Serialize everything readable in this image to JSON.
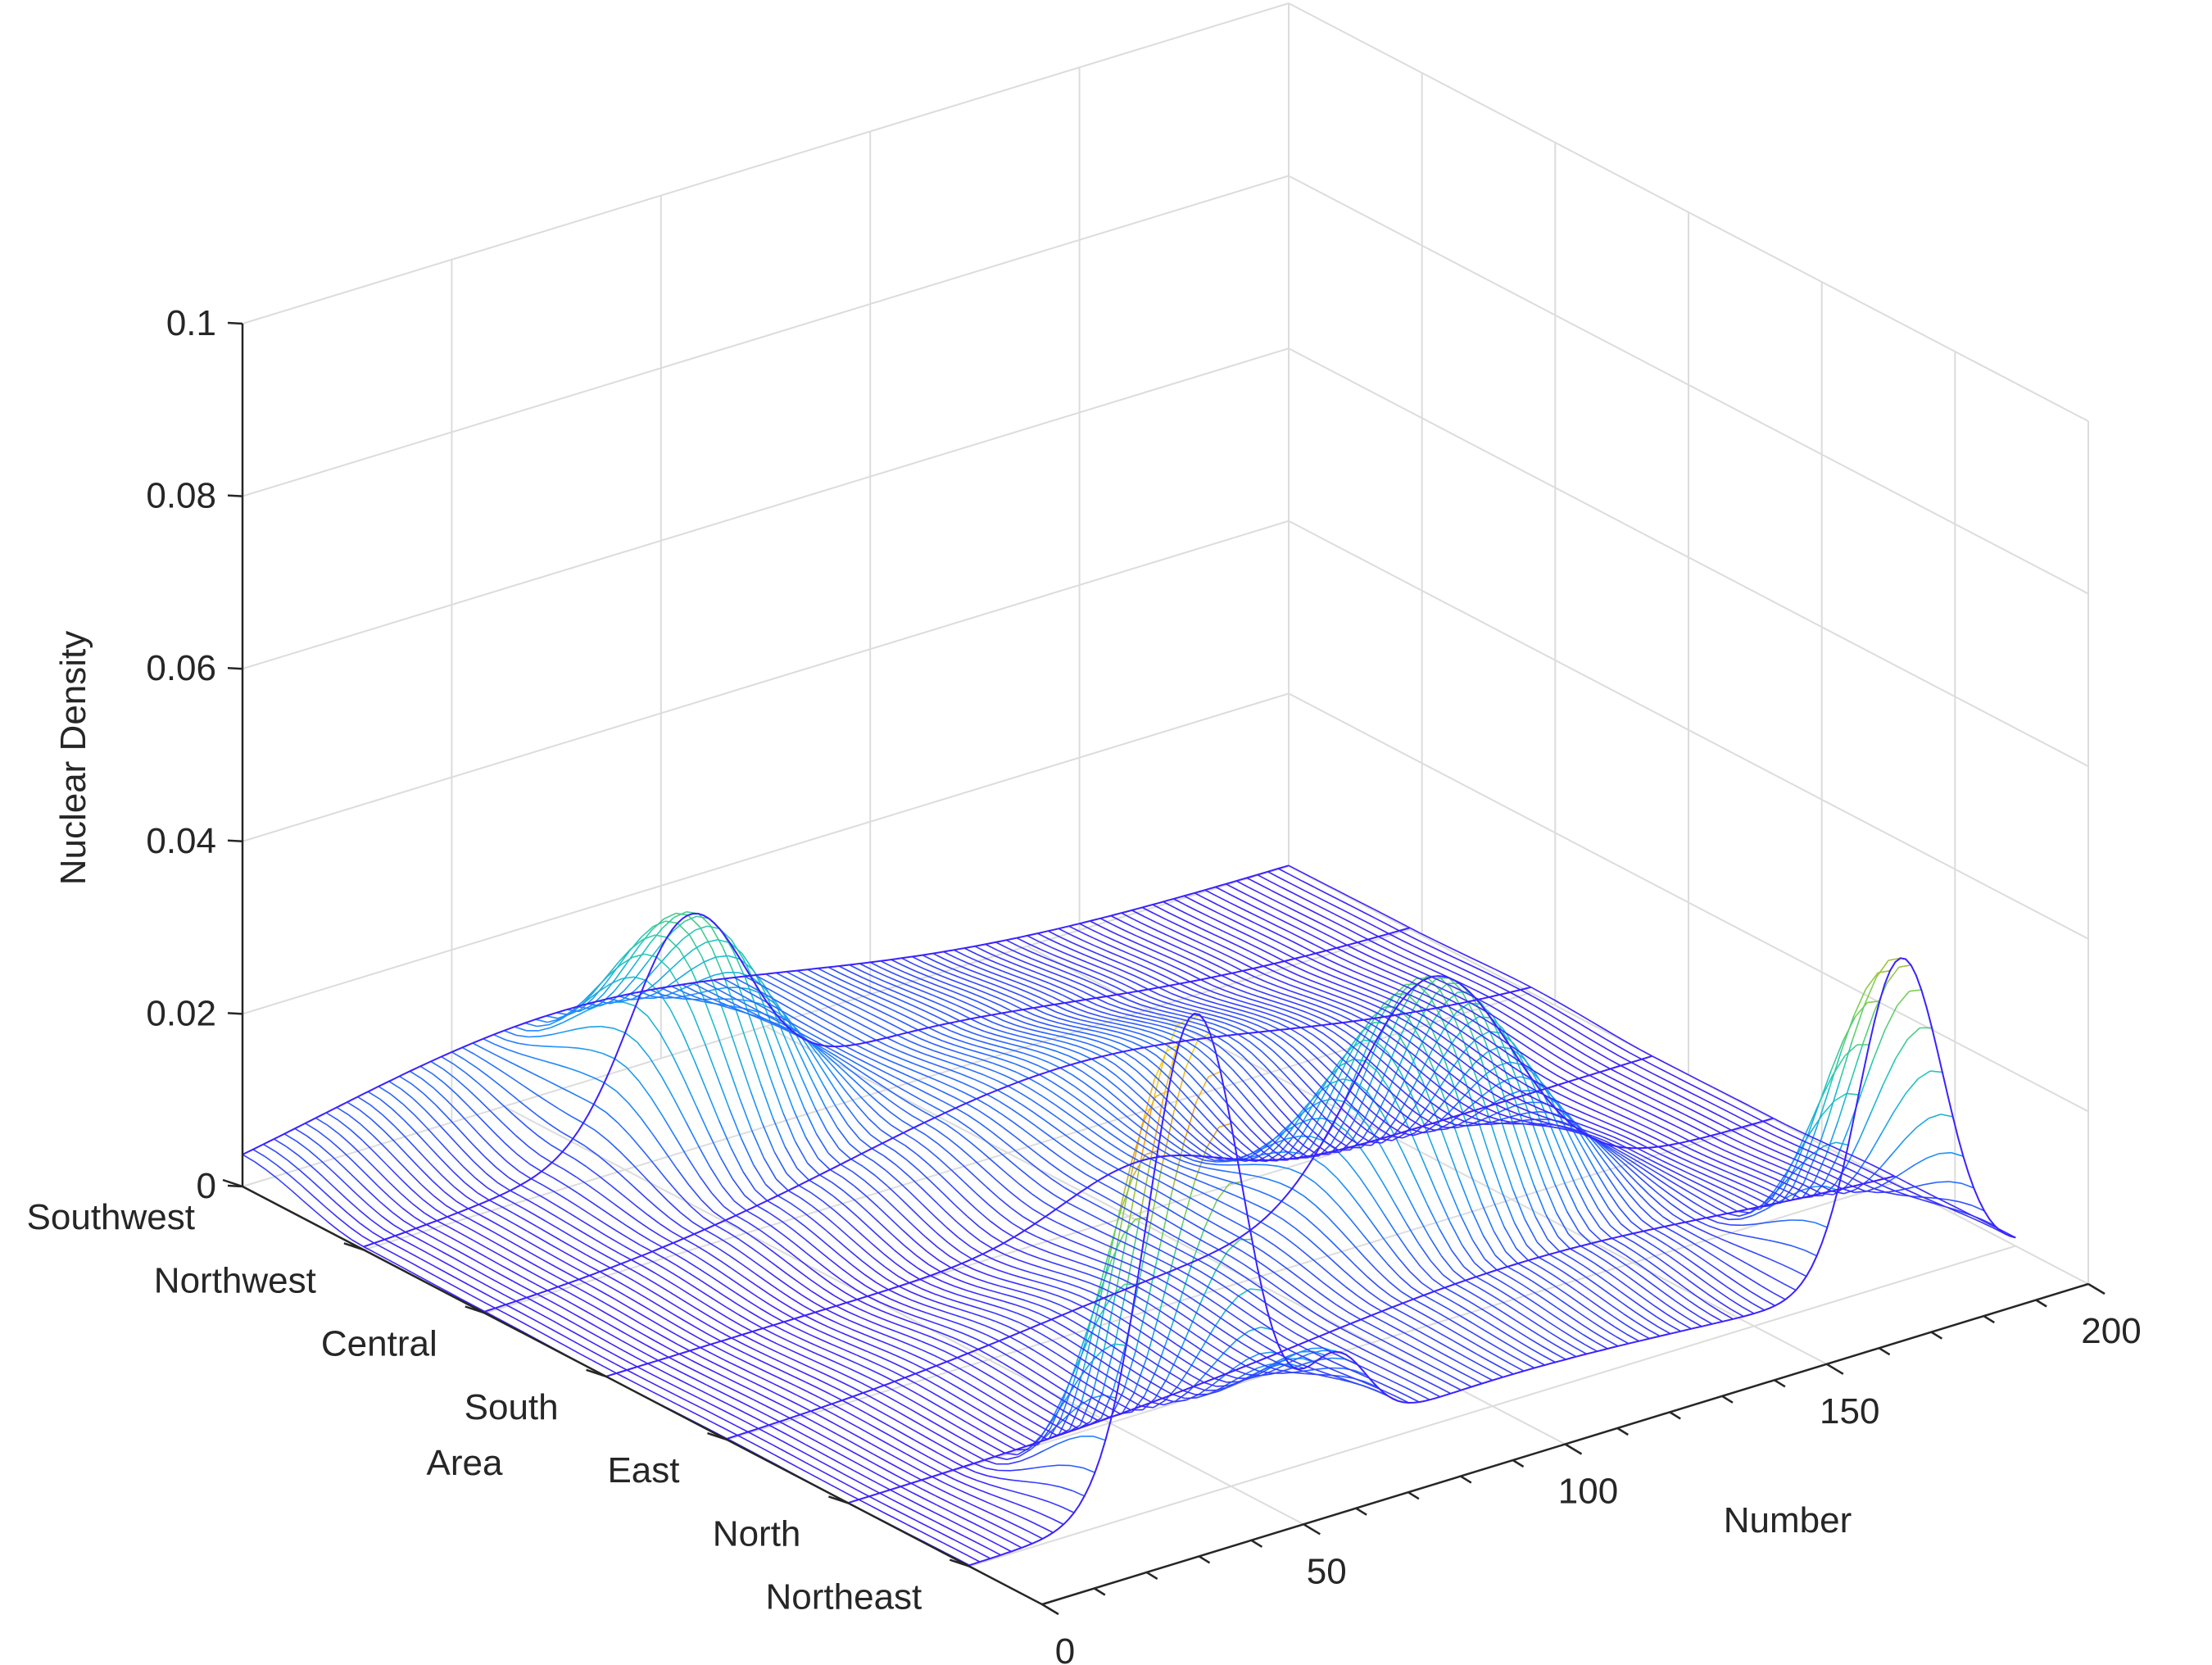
{
  "chart_data": {
    "type": "surface-3d",
    "xlabel": "Number",
    "ylabel": "Area",
    "zlabel": "Nuclear Density",
    "xlim": [
      0,
      200
    ],
    "zlim": [
      0,
      0.1
    ],
    "x_ticks": [
      "0",
      "50",
      "100",
      "150",
      "200"
    ],
    "z_ticks": [
      "0",
      "0.02",
      "0.04",
      "0.06",
      "0.08",
      "0.1"
    ],
    "categories": [
      "Southwest",
      "Northwest",
      "Central",
      "South",
      "East",
      "North",
      "Northeast"
    ],
    "grid": true,
    "colormap": [
      "#3b22ff",
      "#1f8fff",
      "#20c6c0",
      "#7ad151",
      "#f5a020",
      "#f9e21d"
    ],
    "series": [
      {
        "name": "Southwest",
        "peaks": [
          {
            "mu": 60,
            "sigma": 45,
            "amp": 0.009
          }
        ]
      },
      {
        "name": "Northwest",
        "peaks": [
          {
            "mu": 62,
            "sigma": 11,
            "amp": 0.023
          },
          {
            "mu": 95,
            "sigma": 40,
            "amp": 0.006
          }
        ]
      },
      {
        "name": "Central",
        "peaks": [
          {
            "mu": 110,
            "sigma": 40,
            "amp": 0.008
          }
        ]
      },
      {
        "name": "South",
        "peaks": [
          {
            "mu": 102,
            "sigma": 15,
            "amp": 0.006
          }
        ]
      },
      {
        "name": "East",
        "peaks": [
          {
            "mu": 135,
            "sigma": 15,
            "amp": 0.026
          },
          {
            "mu": 100,
            "sigma": 38,
            "amp": 0.004
          }
        ]
      },
      {
        "name": "North",
        "peaks": [
          {
            "mu": 127,
            "sigma": 40,
            "amp": 0.004
          }
        ]
      },
      {
        "name": "Northeast",
        "peaks": [
          {
            "mu": 43,
            "sigma": 9,
            "amp": 0.055
          },
          {
            "mu": 70,
            "sigma": 6,
            "amp": 0.009
          },
          {
            "mu": 100,
            "sigma": 40,
            "amp": 0.003
          },
          {
            "mu": 178,
            "sigma": 8,
            "amp": 0.037
          }
        ]
      }
    ]
  }
}
